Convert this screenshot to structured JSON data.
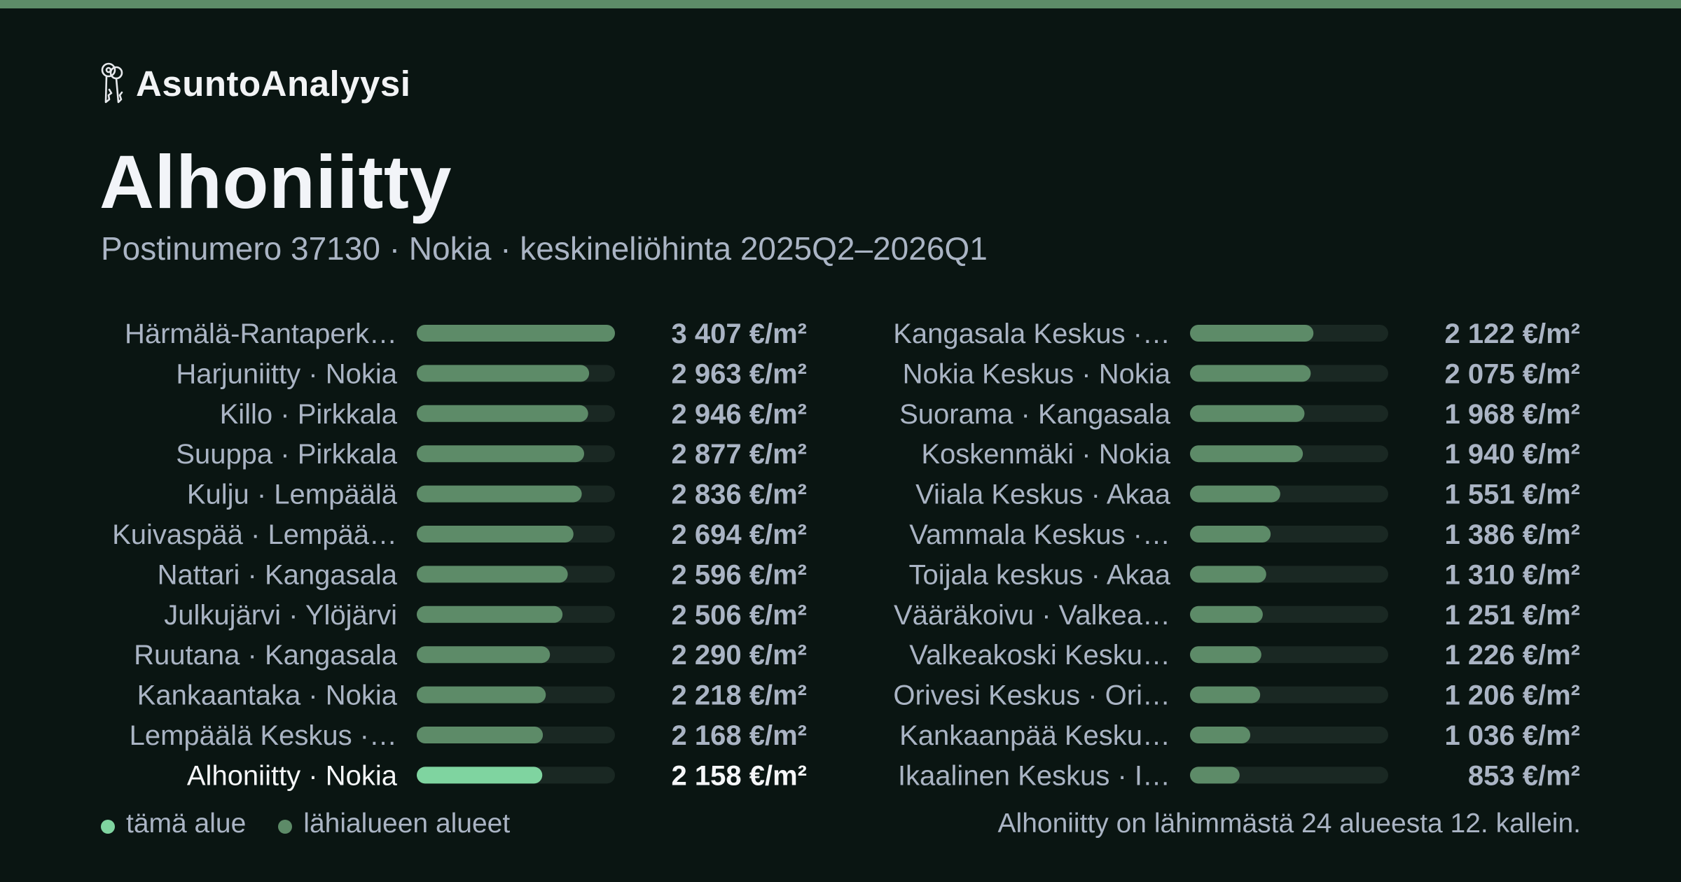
{
  "brand": {
    "name": "AsuntoAnalyysi",
    "icon": "keys-icon"
  },
  "title": "Alhoniitty",
  "subtitle": "Postinumero 37130 · Nokia · keskineliöhinta 2025Q2–2026Q1",
  "colors": {
    "accent": "#5d8b68",
    "highlight": "#7fd4a0",
    "bar": "#5d8b68",
    "track": "#1a2823",
    "label": "#aab4c4",
    "highlight_text": "#f5f6f8"
  },
  "chart_data": {
    "type": "bar",
    "orientation": "horizontal",
    "unit": "€/m²",
    "xlim": [
      0,
      3407
    ],
    "highlight": "Alhoniitty · Nokia",
    "categories": [
      "Härmälä-Rantaperk…",
      "Harjuniitty · Nokia",
      "Killo · Pirkkala",
      "Suuppa · Pirkkala",
      "Kulju · Lempäälä",
      "Kuivaspää · Lempää…",
      "Nattari · Kangasala",
      "Julkujärvi · Ylöjärvi",
      "Ruutana · Kangasala",
      "Kankaantaka · Nokia",
      "Lempäälä Keskus ·…",
      "Alhoniitty · Nokia",
      "Kangasala Keskus ·…",
      "Nokia Keskus · Nokia",
      "Suorama · Kangasala",
      "Koskenmäki · Nokia",
      "Viiala Keskus · Akaa",
      "Vammala Keskus ·…",
      "Toijala keskus · Akaa",
      "Vääräkoivu · Valkea…",
      "Valkeakoski Kesku…",
      "Orivesi Keskus · Ori…",
      "Kankaanpää Kesku…",
      "Ikaalinen Keskus · I…"
    ],
    "values": [
      3407,
      2963,
      2946,
      2877,
      2836,
      2694,
      2596,
      2506,
      2290,
      2218,
      2168,
      2158,
      2122,
      2075,
      1968,
      1940,
      1551,
      1386,
      1310,
      1251,
      1226,
      1206,
      1036,
      853
    ],
    "value_labels": [
      "3 407 €/m²",
      "2 963 €/m²",
      "2 946 €/m²",
      "2 877 €/m²",
      "2 836 €/m²",
      "2 694 €/m²",
      "2 596 €/m²",
      "2 506 €/m²",
      "2 290 €/m²",
      "2 218 €/m²",
      "2 168 €/m²",
      "2 158 €/m²",
      "2 122 €/m²",
      "2 075 €/m²",
      "1 968 €/m²",
      "1 940 €/m²",
      "1 551 €/m²",
      "1 386 €/m²",
      "1 310 €/m²",
      "1 251 €/m²",
      "1 226 €/m²",
      "1 206 €/m²",
      "1 036 €/m²",
      "853 €/m²"
    ]
  },
  "legend": {
    "this_area": "tämä alue",
    "nearby": "lähialueen alueet"
  },
  "note": "Alhoniitty on lähimmästä 24 alueesta 12. kallein."
}
